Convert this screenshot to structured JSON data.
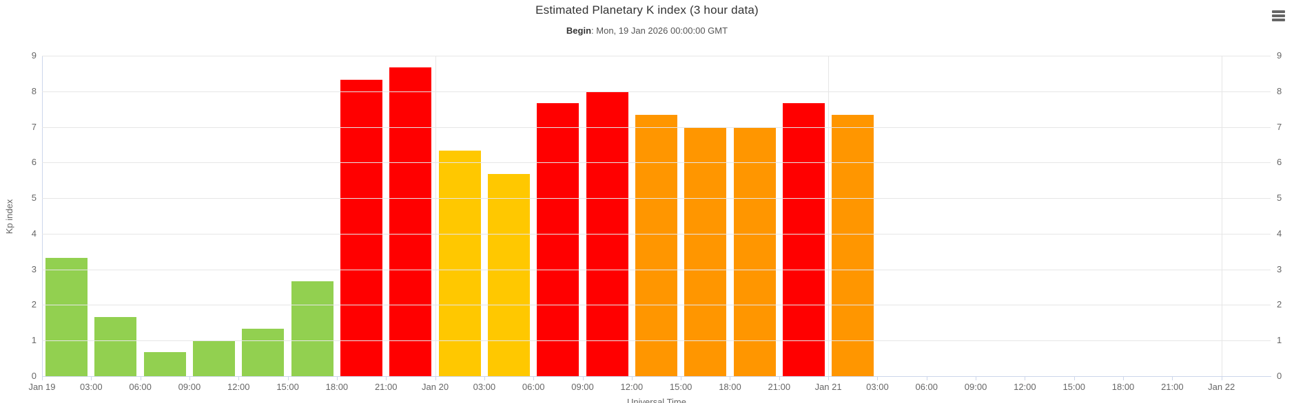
{
  "header": {
    "title": "Estimated Planetary K index (3 hour data)",
    "subtitle_label": "Begin",
    "subtitle_value": ": Mon, 19 Jan 2026 00:00:00 GMT"
  },
  "menu": {
    "icon": "hamburger-icon"
  },
  "axes": {
    "y_title": "Kp index",
    "x_title": "Universal Time"
  },
  "colors": {
    "bars": {
      "green": "#92D050",
      "yellow": "#FFC800",
      "orange": "#FF9600",
      "red": "#FF0000"
    },
    "grid_line": "#E6E6E6",
    "axis_line": "#CCD6EB",
    "axis_label": "#666666",
    "title_text": "#333333",
    "subtitle_text": "#555555",
    "menu_icon": "#666666"
  },
  "chart_data": {
    "type": "bar",
    "title": "Estimated Planetary K index (3 hour data)",
    "subtitle": "Begin: Mon, 19 Jan 2026 00:00:00 GMT",
    "xlabel": "Universal Time",
    "ylabel": "Kp index",
    "ylim": [
      0,
      9
    ],
    "y_ticks": [
      0,
      1,
      2,
      3,
      4,
      5,
      6,
      7,
      8,
      9
    ],
    "grid": "horizontal-on-integers, vertical-on-day-boundaries",
    "legend": "none",
    "x_axis": {
      "start": "Mon, 19 Jan 2026 00:00:00 GMT",
      "hours_span": 75,
      "tick_interval_hours": 3,
      "tick_hours": [
        0,
        3,
        6,
        9,
        12,
        15,
        18,
        21,
        24,
        27,
        30,
        33,
        36,
        39,
        42,
        45,
        48,
        51,
        54,
        57,
        60,
        63,
        66,
        69,
        72
      ],
      "tick_labels": [
        "Jan 19",
        "03:00",
        "06:00",
        "09:00",
        "12:00",
        "15:00",
        "18:00",
        "21:00",
        "Jan 20",
        "03:00",
        "06:00",
        "09:00",
        "12:00",
        "15:00",
        "18:00",
        "21:00",
        "Jan 21",
        "03:00",
        "06:00",
        "09:00",
        "12:00",
        "15:00",
        "18:00",
        "21:00",
        "Jan 22"
      ],
      "day_boundary_gridline_hours": [
        24,
        48,
        72
      ]
    },
    "series": [
      {
        "name": "Kp index",
        "slot_hours": 3,
        "categories": [
          "Jan 19 00:00",
          "Jan 19 03:00",
          "Jan 19 06:00",
          "Jan 19 09:00",
          "Jan 19 12:00",
          "Jan 19 15:00",
          "Jan 19 18:00",
          "Jan 19 21:00",
          "Jan 20 00:00",
          "Jan 20 03:00",
          "Jan 20 06:00",
          "Jan 20 09:00",
          "Jan 20 12:00",
          "Jan 20 15:00",
          "Jan 20 18:00",
          "Jan 20 21:00",
          "Jan 21 00:00"
        ],
        "values": [
          3.33,
          1.67,
          0.67,
          1.0,
          1.33,
          2.67,
          8.33,
          8.67,
          6.33,
          5.67,
          7.67,
          8.0,
          7.33,
          7.0,
          7.0,
          7.67,
          7.33
        ],
        "color_keys": [
          "green",
          "green",
          "green",
          "green",
          "green",
          "green",
          "red",
          "red",
          "yellow",
          "yellow",
          "red",
          "red",
          "orange",
          "orange",
          "orange",
          "red",
          "orange"
        ]
      }
    ]
  }
}
